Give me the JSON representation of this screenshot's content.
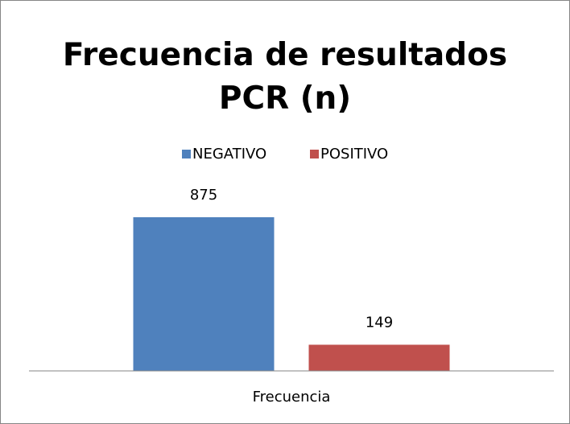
{
  "chart_data": {
    "type": "bar",
    "title": "Frecuencia de resultados PCR (n)",
    "categories": [
      "Frecuencia"
    ],
    "series": [
      {
        "name": "NEGATIVO",
        "color": "#4f81bd",
        "values": [
          875
        ]
      },
      {
        "name": "POSITIVO",
        "color": "#c0504d",
        "values": [
          149
        ]
      }
    ],
    "legend": "top",
    "data_labels": true
  }
}
